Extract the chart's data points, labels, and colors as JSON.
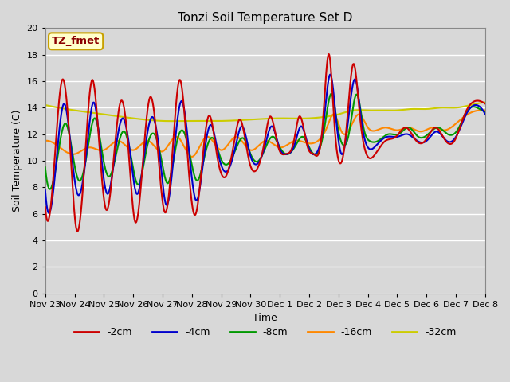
{
  "title": "Tonzi Soil Temperature Set D",
  "xlabel": "Time",
  "ylabel": "Soil Temperature (C)",
  "ylim": [
    0,
    20
  ],
  "yticks": [
    0,
    2,
    4,
    6,
    8,
    10,
    12,
    14,
    16,
    18,
    20
  ],
  "bg_color": "#d8d8d8",
  "plot_bg_color": "#d8d8d8",
  "grid_color": "white",
  "annotation_text": "TZ_fmet",
  "annotation_color": "#8b0000",
  "annotation_bg": "#ffffcc",
  "annotation_border": "#c8a000",
  "series_colors": [
    "#cc0000",
    "#0000cc",
    "#009900",
    "#ff8800",
    "#cccc00"
  ],
  "series_labels": [
    "-2cm",
    "-4cm",
    "-8cm",
    "-16cm",
    "-32cm"
  ],
  "xtick_labels": [
    "Nov 23",
    "Nov 24",
    "Nov 25",
    "Nov 26",
    "Nov 27",
    "Nov 28",
    "Nov 29",
    "Nov 30",
    "Dec 1",
    "Dec 2",
    "Dec 3",
    "Dec 4",
    "Dec 5",
    "Dec 6",
    "Dec 7",
    "Dec 8"
  ]
}
